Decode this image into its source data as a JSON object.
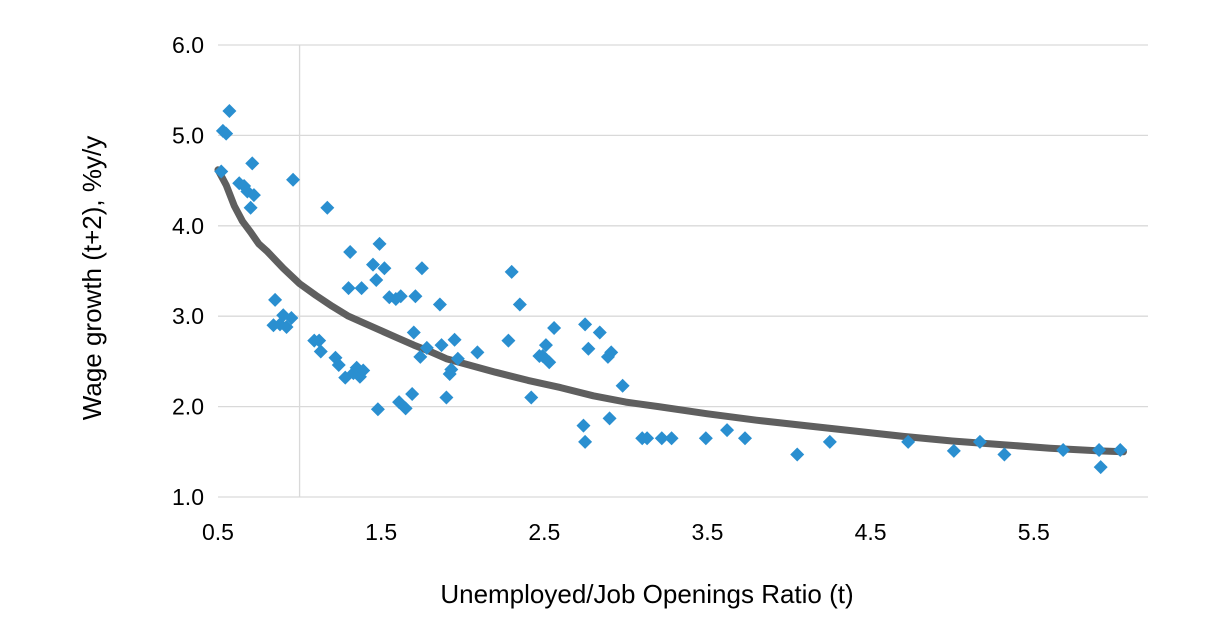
{
  "chart_data": {
    "type": "scatter",
    "xlabel": "Unemployed/Job Openings Ratio (t)",
    "ylabel": "Wage growth (t+2), %y/y",
    "xlim": [
      0.5,
      6.2
    ],
    "ylim": [
      1.0,
      6.0
    ],
    "x_ticks": [
      "0.5",
      "1.5",
      "2.5",
      "3.5",
      "4.5",
      "5.5"
    ],
    "y_ticks": [
      "1.0",
      "2.0",
      "3.0",
      "4.0",
      "5.0",
      "6.0"
    ],
    "grid": "horizontal",
    "reference_line_x": 1.0,
    "legend": "none",
    "colors": {
      "points": "#2a8fd0",
      "fit_line": "#5f5f5f",
      "grid": "#d9d9d9"
    },
    "series": [
      {
        "kind": "points",
        "x": [
          0.53,
          0.55,
          0.57,
          0.52,
          0.63,
          0.66,
          0.68,
          0.71,
          0.72,
          0.7,
          0.96,
          0.85,
          0.88,
          0.92,
          0.95,
          0.9,
          0.84,
          1.09,
          1.13,
          1.12,
          1.17,
          1.22,
          1.24,
          1.28,
          1.31,
          1.33,
          1.35,
          1.37,
          1.39,
          1.3,
          1.38,
          1.45,
          1.47,
          1.49,
          1.52,
          1.55,
          1.59,
          1.62,
          1.48,
          1.61,
          1.65,
          1.69,
          1.7,
          1.71,
          1.74,
          1.75,
          1.78,
          1.86,
          1.87,
          1.9,
          1.92,
          1.93,
          1.95,
          1.97,
          2.09,
          2.28,
          2.3,
          2.35,
          2.42,
          2.47,
          2.49,
          2.51,
          2.53,
          2.56,
          2.74,
          2.75,
          2.77,
          2.75,
          2.84,
          2.9,
          2.91,
          2.89,
          2.98,
          3.1,
          3.13,
          3.22,
          3.28,
          3.49,
          3.62,
          3.73,
          4.05,
          4.25,
          4.73,
          5.01,
          5.17,
          5.32,
          5.68,
          5.9,
          5.91,
          6.03
        ],
        "y": [
          5.05,
          5.02,
          5.27,
          4.6,
          4.47,
          4.44,
          4.38,
          4.69,
          4.34,
          4.2,
          4.51,
          3.18,
          2.91,
          2.88,
          2.98,
          3.01,
          2.9,
          2.73,
          2.61,
          2.73,
          4.2,
          2.54,
          2.46,
          2.32,
          3.71,
          2.37,
          2.43,
          2.33,
          2.4,
          3.31,
          3.31,
          3.57,
          3.4,
          3.8,
          3.53,
          3.21,
          3.19,
          3.22,
          1.97,
          2.05,
          1.98,
          2.14,
          2.82,
          3.22,
          2.55,
          3.53,
          2.65,
          3.13,
          2.68,
          2.1,
          2.36,
          2.41,
          2.74,
          2.53,
          2.6,
          2.73,
          3.49,
          3.13,
          2.1,
          2.56,
          2.56,
          2.68,
          2.49,
          2.87,
          1.79,
          2.91,
          2.64,
          1.61,
          2.82,
          1.87,
          2.6,
          2.55,
          2.23,
          1.65,
          1.65,
          1.65,
          1.65,
          1.65,
          1.74,
          1.65,
          1.47,
          1.61,
          1.61,
          1.51,
          1.61,
          1.47,
          1.52,
          1.52,
          1.33,
          1.52
        ]
      },
      {
        "kind": "fit-line",
        "x": [
          0.5,
          0.55,
          0.6,
          0.65,
          0.7,
          0.75,
          0.8,
          0.9,
          1.0,
          1.1,
          1.2,
          1.3,
          1.4,
          1.5,
          1.6,
          1.7,
          1.8,
          1.9,
          2.0,
          2.2,
          2.4,
          2.6,
          2.8,
          3.0,
          3.2,
          3.5,
          3.8,
          4.1,
          4.4,
          4.7,
          5.0,
          5.3,
          5.6,
          5.9,
          6.05
        ],
        "y": [
          4.62,
          4.45,
          4.22,
          4.05,
          3.93,
          3.8,
          3.72,
          3.53,
          3.36,
          3.23,
          3.11,
          3.0,
          2.92,
          2.84,
          2.76,
          2.68,
          2.61,
          2.53,
          2.48,
          2.38,
          2.29,
          2.21,
          2.12,
          2.05,
          2.0,
          1.92,
          1.85,
          1.79,
          1.73,
          1.67,
          1.62,
          1.58,
          1.54,
          1.51,
          1.5
        ]
      }
    ]
  }
}
